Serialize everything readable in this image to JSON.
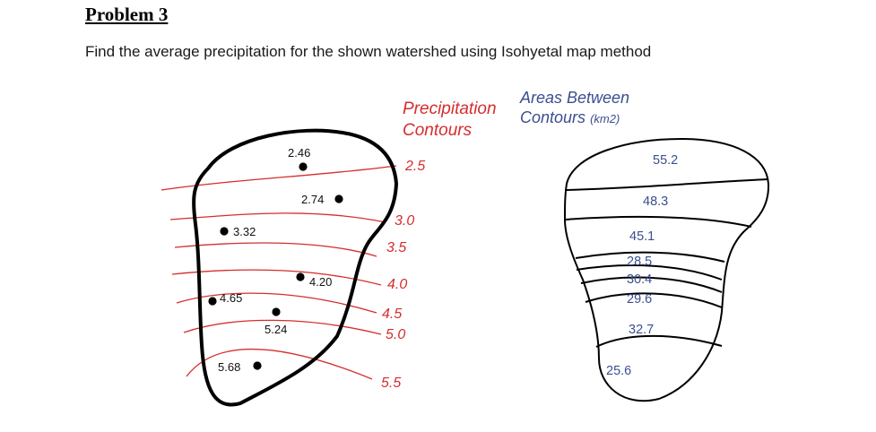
{
  "header": {
    "title": "Problem 3",
    "question": "Find the average precipitation for the shown watershed using Isohyetal map method"
  },
  "legend": {
    "contours_heading_line1": "Precipitation",
    "contours_heading_line2": "Contours",
    "areas_heading_line1": "Areas Between",
    "areas_heading_line2": "Contours",
    "areas_unit": "(km2)"
  },
  "contours": [
    "2.5",
    "3.0",
    "3.5",
    "4.0",
    "4.5",
    "5.0",
    "5.5"
  ],
  "stations": [
    "2.46",
    "2.74",
    "3.32",
    "4.20",
    "4.65",
    "5.24",
    "5.68"
  ],
  "areas": [
    "55.2",
    "48.3",
    "45.1",
    "28.5",
    "30.4",
    "29.6",
    "32.7",
    "25.6"
  ],
  "colors": {
    "contour": "#d62d2d",
    "area_text": "#3b4e8f",
    "outline": "#000000"
  }
}
